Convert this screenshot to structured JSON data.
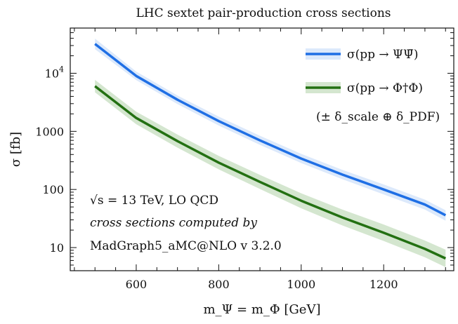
{
  "chart_data": {
    "type": "line",
    "title": "LHC sextet pair-production cross sections",
    "xlabel": "m_Ψ = m_Φ [GeV]",
    "ylabel": "σ [fb]",
    "xlim": [
      440,
      1370
    ],
    "ylim": [
      4,
      60000
    ],
    "yscale": "log",
    "xticks": [
      600,
      800,
      1000,
      1200
    ],
    "yticks": [
      {
        "value": 10,
        "label": "10"
      },
      {
        "value": 100,
        "label": "100"
      },
      {
        "value": 1000,
        "label": "1000"
      },
      {
        "value": 10000,
        "label": "10^4"
      }
    ],
    "grid": false,
    "legend_position": "top-right",
    "legend_note": "(± δ_scale ⊕ δ_PDF)",
    "annotations": [
      "√s = 13 TeV,  LO QCD",
      "cross sections computed by",
      "MadGraph5_aMC@NLO v 3.2.0"
    ],
    "series": [
      {
        "name": "σ(pp → ΨΨ̄)",
        "color": "#1f6fe5",
        "band_color": "#dce9fb",
        "x": [
          500,
          600,
          700,
          800,
          900,
          1000,
          1100,
          1200,
          1300,
          1350
        ],
        "y": [
          32000,
          9000,
          3500,
          1500,
          700,
          340,
          180,
          100,
          55,
          36
        ],
        "y_low": [
          26000,
          7600,
          2950,
          1260,
          585,
          285,
          150,
          82,
          45,
          29
        ],
        "y_high": [
          39500,
          10700,
          4150,
          1800,
          840,
          410,
          217,
          122,
          67,
          44
        ]
      },
      {
        "name": "σ(pp → Φ†Φ)",
        "color": "#237012",
        "band_color": "#d4e6cf",
        "x": [
          500,
          600,
          700,
          800,
          900,
          1000,
          1100,
          1200,
          1300,
          1350
        ],
        "y": [
          6000,
          1700,
          680,
          290,
          135,
          64,
          33,
          18,
          9.5,
          6.5
        ],
        "y_low": [
          4700,
          1330,
          525,
          222,
          102,
          47.5,
          24,
          13,
          6.8,
          4.6
        ],
        "y_high": [
          7700,
          2180,
          880,
          378,
          178,
          86,
          45,
          25,
          13.2,
          9.2
        ]
      }
    ]
  }
}
